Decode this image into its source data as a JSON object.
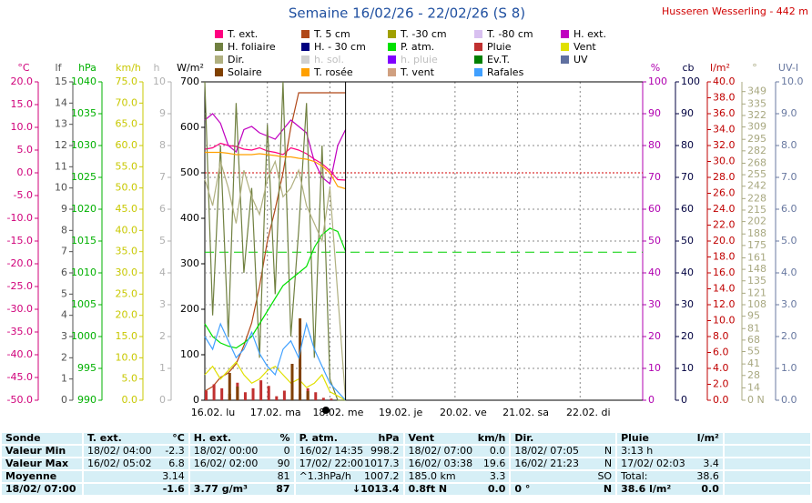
{
  "chart_data": {
    "type": "line",
    "title": "Semaine 16/02/26 - 22/02/26 (S 8)",
    "subtitle": "Husseren Wesserling - 442 m",
    "xlim": [
      0,
      168
    ],
    "xticks": [
      {
        "value": 0,
        "label": "16.02. lu"
      },
      {
        "value": 24,
        "label": "17.02. ma"
      },
      {
        "value": 48,
        "label": "18.02. me"
      },
      {
        "value": 72,
        "label": "19.02. je"
      },
      {
        "value": 96,
        "label": "20.02. ve"
      },
      {
        "value": 120,
        "label": "21.02. sa"
      },
      {
        "value": 144,
        "label": "22.02. di"
      }
    ],
    "x_grid": true,
    "axes": [
      {
        "label": "°C",
        "side": "left",
        "color": "#d0007a",
        "lim": [
          -50,
          20
        ],
        "ticks": [
          {
            "value": 20,
            "label": "20.0"
          },
          {
            "value": 15,
            "label": "15.0"
          },
          {
            "value": 10,
            "label": "10.0"
          },
          {
            "value": 5,
            "label": "5.0"
          },
          {
            "value": 0,
            "label": "0.0"
          },
          {
            "value": -5,
            "label": "-5.0"
          },
          {
            "value": -10,
            "label": "-10.0"
          },
          {
            "value": -15,
            "label": "-15.0"
          },
          {
            "value": -20,
            "label": "-20.0"
          },
          {
            "value": -25,
            "label": "-25.0"
          },
          {
            "value": -30,
            "label": "-30.0"
          },
          {
            "value": -35,
            "label": "-35.0"
          },
          {
            "value": -40,
            "label": "-40.0"
          },
          {
            "value": -45,
            "label": "-45.0"
          },
          {
            "value": -50,
            "label": "-50.0"
          }
        ]
      },
      {
        "label": "lf",
        "side": "left",
        "color": "#505050",
        "lim": [
          0,
          15
        ],
        "ticks": [
          15,
          14,
          13,
          12,
          11,
          10,
          9,
          8,
          7,
          6,
          5,
          4,
          3,
          2,
          1,
          0
        ]
      },
      {
        "label": "hPa",
        "side": "left",
        "color": "#00b000",
        "lim": [
          990,
          1040
        ],
        "ticks": [
          1040,
          1035,
          1030,
          1025,
          1020,
          1015,
          1010,
          1005,
          1000,
          995,
          990
        ]
      },
      {
        "label": "km/h",
        "side": "left",
        "color": "#c8c800",
        "lim": [
          0,
          75
        ],
        "ticks": [
          {
            "value": 75,
            "label": "75.0"
          },
          {
            "value": 70,
            "label": "70.0"
          },
          {
            "value": 65,
            "label": "65.0"
          },
          {
            "value": 60,
            "label": "60.0"
          },
          {
            "value": 55,
            "label": "55.0"
          },
          {
            "value": 50,
            "label": "50.0"
          },
          {
            "value": 45,
            "label": "45.0"
          },
          {
            "value": 40,
            "label": "40.0"
          },
          {
            "value": 35,
            "label": "35.0"
          },
          {
            "value": 30,
            "label": "30.0"
          },
          {
            "value": 25,
            "label": "25.0"
          },
          {
            "value": 20,
            "label": "20.0"
          },
          {
            "value": 15,
            "label": "15.0"
          },
          {
            "value": 10,
            "label": "10.0"
          },
          {
            "value": 5,
            "label": "5.0"
          },
          {
            "value": 0,
            "label": "0.0"
          }
        ]
      },
      {
        "label": "h",
        "side": "left",
        "color": "#b0b0b0",
        "lim": [
          0,
          10
        ],
        "ticks": [
          10,
          9,
          8,
          7,
          6,
          5,
          4,
          3,
          2,
          1,
          0
        ]
      },
      {
        "label": "W/m²",
        "side": "left",
        "color": "#000000",
        "lim": [
          0,
          700
        ],
        "ticks": [
          700,
          600,
          500,
          400,
          300,
          200,
          100,
          0
        ]
      },
      {
        "label": "%",
        "side": "right",
        "color": "#b000b0",
        "lim": [
          0,
          100
        ],
        "grid": true,
        "ticks": [
          100,
          90,
          80,
          70,
          60,
          50,
          40,
          30,
          20,
          10,
          0
        ]
      },
      {
        "label": "cb",
        "side": "right",
        "color": "#000040",
        "lim": [
          0,
          100
        ],
        "ticks": [
          100,
          90,
          80,
          70,
          60,
          50,
          40,
          30,
          20,
          10,
          0
        ]
      },
      {
        "label": "l/m²",
        "side": "right",
        "color": "#c00000",
        "lim": [
          0,
          40
        ],
        "ticks": [
          {
            "value": 40,
            "label": "40.0"
          },
          {
            "value": 38,
            "label": "38.0"
          },
          {
            "value": 36,
            "label": "36.0"
          },
          {
            "value": 34,
            "label": "34.0"
          },
          {
            "value": 32,
            "label": "32.0"
          },
          {
            "value": 30,
            "label": "30.0"
          },
          {
            "value": 28,
            "label": "28.0"
          },
          {
            "value": 26,
            "label": "26.0"
          },
          {
            "value": 24,
            "label": "24.0"
          },
          {
            "value": 22,
            "label": "22.0"
          },
          {
            "value": 20,
            "label": "20.0"
          },
          {
            "value": 18,
            "label": "18.0"
          },
          {
            "value": 16,
            "label": "16.0"
          },
          {
            "value": 14,
            "label": "14.0"
          },
          {
            "value": 12,
            "label": "12.0"
          },
          {
            "value": 10,
            "label": "10.0"
          },
          {
            "value": 8,
            "label": "8.0"
          },
          {
            "value": 6,
            "label": "6.0"
          },
          {
            "value": 4,
            "label": "4.0"
          },
          {
            "value": 2,
            "label": "2.0"
          },
          {
            "value": 0,
            "label": "0.0"
          }
        ]
      },
      {
        "label": "°",
        "side": "right",
        "color": "#a8a880",
        "lim": [
          0,
          360
        ],
        "ticks": [
          349,
          335,
          322,
          309,
          295,
          282,
          268,
          255,
          242,
          228,
          215,
          202,
          188,
          175,
          161,
          148,
          135,
          121,
          108,
          95,
          81,
          68,
          55,
          41,
          28,
          14,
          {
            "value": 0,
            "label": "0 N"
          }
        ]
      },
      {
        "label": "UV-I",
        "side": "right",
        "color": "#6878a0",
        "lim": [
          0,
          10
        ],
        "ticks": [
          {
            "value": 10,
            "label": "10.0"
          },
          {
            "value": 9,
            "label": "9.0"
          },
          {
            "value": 8,
            "label": "8.0"
          },
          {
            "value": 7,
            "label": "7.0"
          },
          {
            "value": 6,
            "label": "6.0"
          },
          {
            "value": 5,
            "label": "5.0"
          },
          {
            "value": 4,
            "label": "4.0"
          },
          {
            "value": 3,
            "label": "3.0"
          },
          {
            "value": 2,
            "label": "2.0"
          },
          {
            "value": 1,
            "label": "1.0"
          },
          {
            "value": 0,
            "label": "0.0"
          }
        ]
      }
    ],
    "reference_lines": [
      {
        "axis": "°C",
        "value": 0,
        "color": "#d00000"
      },
      {
        "axis": "hPa",
        "value": 1013.25,
        "color": "#00d000"
      }
    ],
    "x": [
      0,
      3,
      6,
      9,
      12,
      15,
      18,
      21,
      24,
      27,
      30,
      33,
      36,
      39,
      42,
      45,
      48,
      51,
      54
    ],
    "series": [
      {
        "name": "T. ext.",
        "color": "#ff0080",
        "axis": "°C",
        "values": [
          5.2,
          5.5,
          6.5,
          6.0,
          5.8,
          5.2,
          5.0,
          5.5,
          4.8,
          4.5,
          4.0,
          5.5,
          5.0,
          4.2,
          3.0,
          2.0,
          0.5,
          -1.5,
          -1.6
        ]
      },
      {
        "name": "T. 5 cm",
        "color": "#b04818",
        "axis": "°C",
        "values": [
          -48,
          -47,
          -45,
          -44,
          -42,
          -38,
          -33,
          -25,
          -15,
          -8,
          0,
          10,
          17.6,
          17.6,
          17.6,
          17.6,
          17.6,
          17.6,
          17.6
        ]
      },
      {
        "name": "T. -30 cm",
        "color": "#a0a000"
      },
      {
        "name": "T. -80 cm",
        "color": "#d8c0f0"
      },
      {
        "name": "H. ext.",
        "color": "#c000c0",
        "axis": "%",
        "values": [
          88,
          90,
          87,
          80,
          78,
          85,
          86,
          84,
          83,
          82,
          85,
          88,
          86,
          84,
          75,
          70,
          68,
          80,
          85
        ]
      },
      {
        "name": "H. foliaire",
        "color": "#708040",
        "axis": "lf",
        "values": [
          15,
          4,
          12,
          3,
          14,
          6,
          10,
          2,
          13,
          5,
          15,
          3,
          8,
          14,
          2,
          12,
          1,
          0,
          0
        ]
      },
      {
        "name": "H. - 30 cm",
        "color": "#000080"
      },
      {
        "name": "P. atm.",
        "color": "#00e000",
        "axis": "hPa",
        "values": [
          1002,
          1000,
          999,
          998.5,
          998.2,
          999,
          1000,
          1002,
          1004,
          1006,
          1008,
          1009,
          1010,
          1011,
          1014,
          1016,
          1017,
          1016.5,
          1013.4
        ]
      },
      {
        "name": "Pluie",
        "color": "#c03030",
        "axis": "l/m²",
        "style": "bar",
        "values": [
          1.2,
          2.0,
          1.5,
          0.8,
          2.2,
          1.0,
          1.5,
          2.5,
          1.8,
          0.5,
          1.2,
          2.0,
          0.8,
          1.5,
          1.0,
          0.3,
          0.2,
          0,
          0
        ]
      },
      {
        "name": "Vent",
        "color": "#e0e000",
        "axis": "km/h",
        "values": [
          6,
          8,
          5,
          7,
          9,
          6,
          4,
          5,
          7,
          8,
          6,
          4,
          5,
          3,
          4,
          6,
          2,
          1,
          0
        ]
      },
      {
        "name": "Dir.",
        "color": "#b0b080",
        "axis": "°",
        "values": [
          250,
          220,
          270,
          240,
          200,
          260,
          230,
          210,
          250,
          270,
          230,
          240,
          260,
          220,
          200,
          180,
          240,
          120,
          0
        ]
      },
      {
        "name": "h. sol.",
        "color": "#d0d0d0",
        "muted": true
      },
      {
        "name": "h. pluie",
        "color": "#8000ff",
        "muted": true
      },
      {
        "name": "Ev.T.",
        "color": "#008000"
      },
      {
        "name": "UV",
        "color": "#6070a0"
      },
      {
        "name": "Solaire",
        "color": "#804000",
        "axis": "W/m²",
        "style": "bar",
        "values": [
          0,
          0,
          0,
          60,
          30,
          0,
          0,
          0,
          0,
          0,
          0,
          80,
          180,
          20,
          0,
          0,
          0,
          0,
          0
        ]
      },
      {
        "name": "T. rosée",
        "color": "#ffa000",
        "axis": "°C",
        "values": [
          4.5,
          4.5,
          4.5,
          4.3,
          4.0,
          4.0,
          4.0,
          4.2,
          4.0,
          3.8,
          3.5,
          3.5,
          3.2,
          3.0,
          2.5,
          1.5,
          0,
          -3,
          -3.5
        ]
      },
      {
        "name": "T. vent",
        "color": "#d0a080"
      },
      {
        "name": "Rafales",
        "color": "#40a0ff",
        "axis": "km/h",
        "values": [
          15,
          12,
          18,
          14,
          10,
          12,
          16,
          11,
          8,
          6,
          12,
          14,
          10,
          18,
          12,
          8,
          4,
          2,
          0
        ]
      }
    ]
  },
  "table": {
    "columns": [
      {
        "title": "Sonde"
      },
      {
        "title": "T. ext.",
        "unit": "°C"
      },
      {
        "title": "H. ext.",
        "unit": "%"
      },
      {
        "title": "P. atm.",
        "unit": "hPa"
      },
      {
        "title": "Vent",
        "unit": "km/h"
      },
      {
        "title": "Dir."
      },
      {
        "title": "Pluie",
        "unit": "l/m²"
      }
    ],
    "rows": [
      {
        "label": "Valeur Min",
        "cells": [
          {
            "left": "18/02/ 04:00",
            "right": "-2.3"
          },
          {
            "left": "18/02/ 00:00",
            "right": "0"
          },
          {
            "left": "16/02/ 14:35",
            "right": "998.2"
          },
          {
            "left": "18/02/ 07:00",
            "right": "0.0"
          },
          {
            "left": "18/02/ 07:05",
            "right": "N"
          },
          {
            "left": "3:13 h"
          }
        ]
      },
      {
        "label": "Valeur Max",
        "cells": [
          {
            "left": "16/02/ 05:02",
            "right": "6.8"
          },
          {
            "left": "16/02/ 02:00",
            "right": "90"
          },
          {
            "left": "17/02/ 22:00",
            "right": "1017.3"
          },
          {
            "left": "16/02/ 03:38",
            "right": "19.6"
          },
          {
            "left": "16/02/ 21:23",
            "right": "N"
          },
          {
            "left": "17/02/ 02:03",
            "right": "3.4"
          }
        ]
      },
      {
        "label": "Moyenne",
        "cells": [
          {
            "right": "3.14"
          },
          {
            "right": "81"
          },
          {
            "left": "^1.3hPa/h",
            "right": "1007.2"
          },
          {
            "left": "185.0 km",
            "right": "3.3"
          },
          {
            "right": "SO"
          },
          {
            "left": "Total:",
            "right": "38.6"
          }
        ]
      },
      {
        "label": "18/02/ 07:00",
        "cells": [
          {
            "right": "-1.6"
          },
          {
            "left": "3.77 g/m³",
            "right": "87"
          },
          {
            "right": "↓1013.4"
          },
          {
            "left": "0.8ft N",
            "right": "0.0"
          },
          {
            "left": "0 °",
            "right": "N"
          },
          {
            "left": "38.6 l/m²",
            "right": "0.0"
          }
        ]
      }
    ]
  }
}
